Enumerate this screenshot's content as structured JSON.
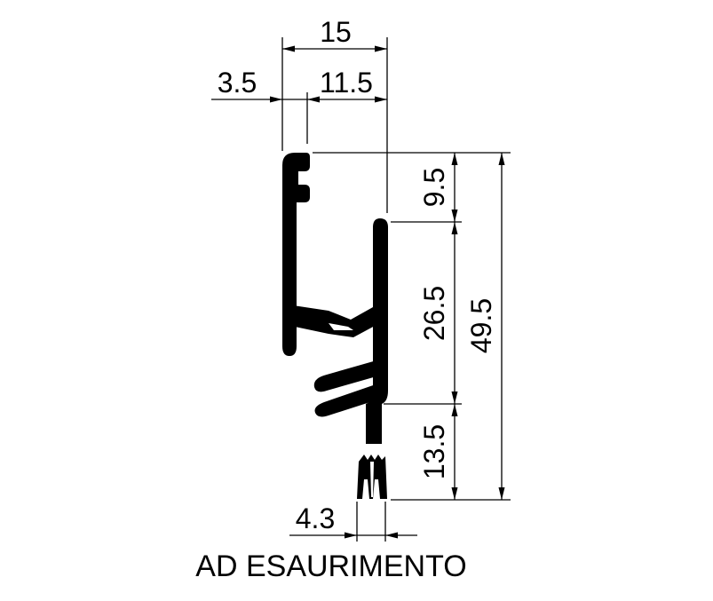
{
  "dimensions": {
    "top_width": "15",
    "left_offset": "3.5",
    "inner_width": "11.5",
    "height_top": "9.5",
    "height_middle": "26.5",
    "height_total": "49.5",
    "height_bottom": "13.5",
    "seal_width": "4.3"
  },
  "caption": "AD ESAURIMENTO",
  "colors": {
    "ink": "#000000",
    "background": "#ffffff"
  }
}
